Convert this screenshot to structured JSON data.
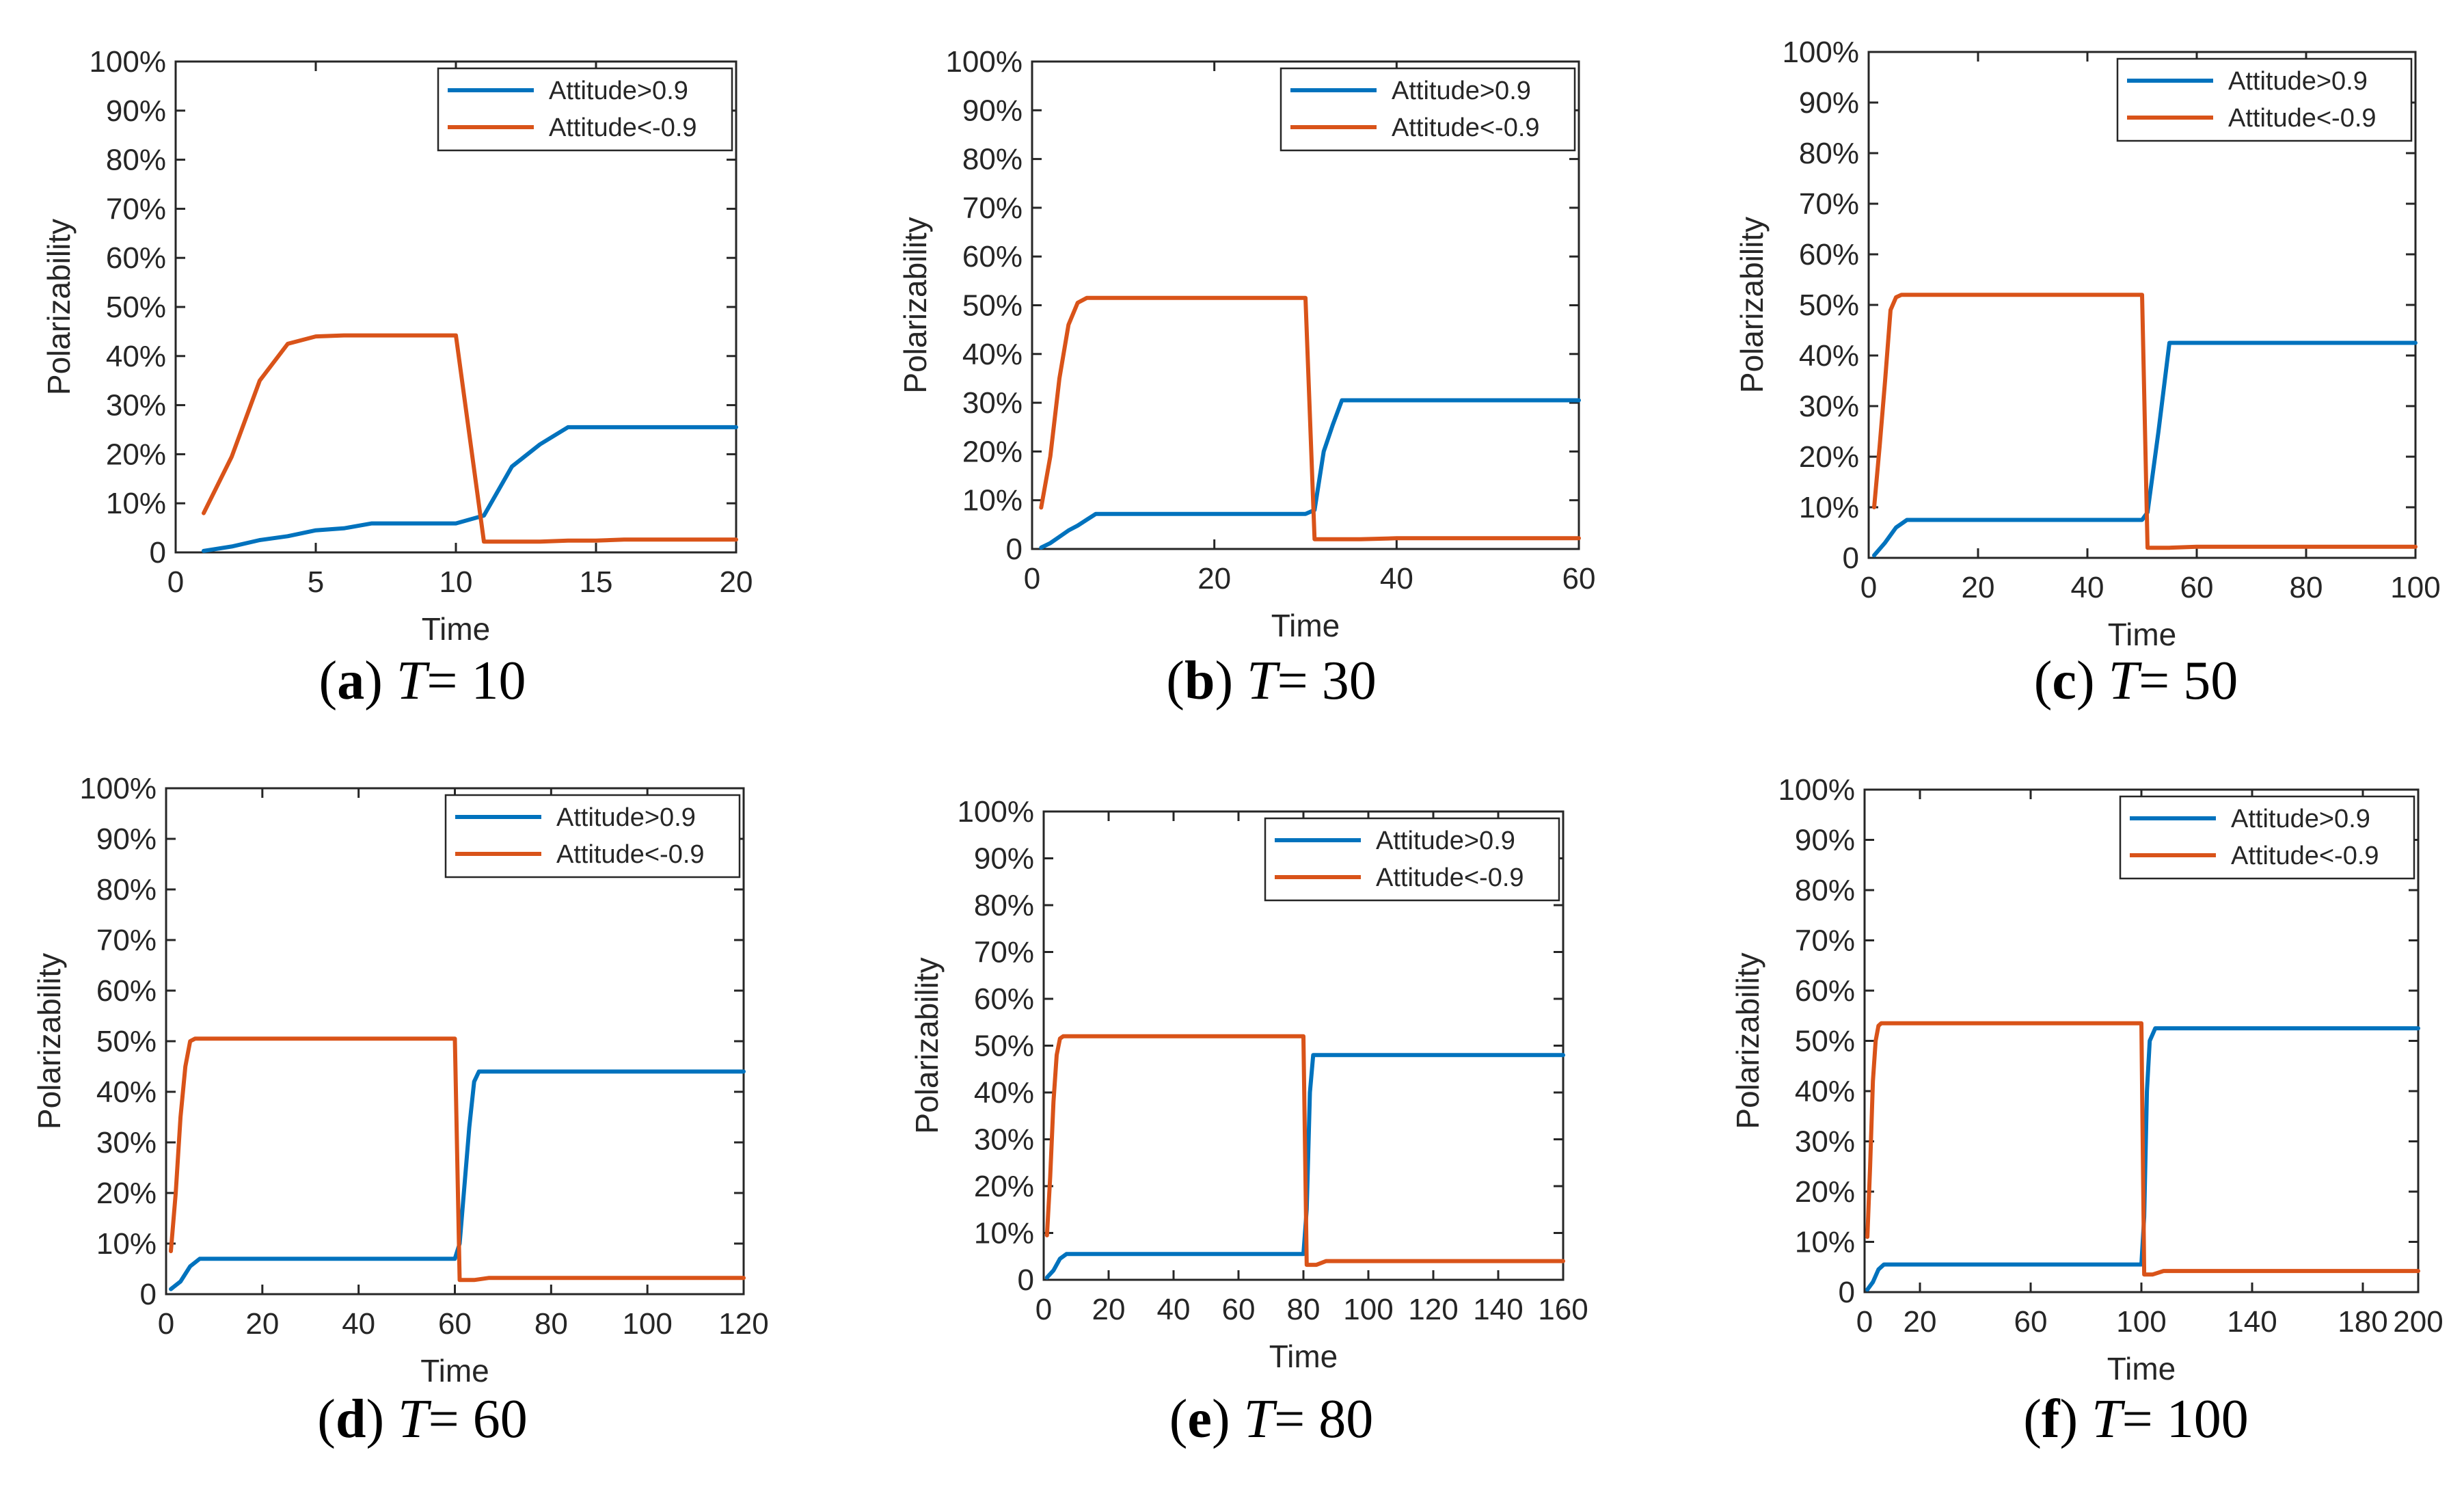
{
  "colors": {
    "series_pos": "#0072BD",
    "series_neg": "#D95319",
    "axis": "#262626"
  },
  "chart_data": [
    {
      "type": "line",
      "caption": {
        "label": "a",
        "var": "T",
        "rest": "= 10"
      },
      "xlabel": "Time",
      "ylabel": "Polarizability",
      "xlim": [
        0,
        20
      ],
      "ylim": [
        0,
        100
      ],
      "x_ticks": [
        0,
        5,
        10,
        15,
        20
      ],
      "x_tick_labels": [
        "0",
        "5",
        "10",
        "15",
        "20"
      ],
      "y_ticks": [
        0,
        10,
        20,
        30,
        40,
        50,
        60,
        70,
        80,
        90,
        100
      ],
      "y_tick_labels": [
        "0",
        "10%",
        "20%",
        "30%",
        "40%",
        "50%",
        "60%",
        "70%",
        "80%",
        "90%",
        "100%"
      ],
      "legend": "top-right",
      "series": [
        {
          "name": "Attitude>0.9",
          "x": [
            1,
            2,
            3,
            4,
            5,
            6,
            7,
            8,
            9,
            10,
            11,
            12,
            13,
            14,
            15,
            16,
            17,
            18,
            19,
            20
          ],
          "values": [
            0.3,
            1.2,
            2.5,
            3.3,
            4.5,
            4.9,
            5.9,
            5.9,
            5.9,
            5.9,
            7.5,
            17.5,
            22,
            25.5,
            25.5,
            25.5,
            25.5,
            25.5,
            25.5,
            25.5
          ]
        },
        {
          "name": "Attitude<-0.9",
          "x": [
            1,
            2,
            3,
            4,
            5,
            6,
            7,
            8,
            9,
            10,
            11,
            12,
            13,
            14,
            15,
            16,
            17,
            18,
            19,
            20
          ],
          "values": [
            8,
            19.5,
            35,
            42.5,
            44,
            44.2,
            44.2,
            44.2,
            44.2,
            44.2,
            2.2,
            2.2,
            2.2,
            2.4,
            2.4,
            2.6,
            2.6,
            2.6,
            2.6,
            2.6
          ]
        }
      ]
    },
    {
      "type": "line",
      "caption": {
        "label": "b",
        "var": "T",
        "rest": "= 30"
      },
      "xlabel": "Time",
      "ylabel": "Polarizability",
      "xlim": [
        0,
        60
      ],
      "ylim": [
        0,
        100
      ],
      "x_ticks": [
        0,
        20,
        40,
        60
      ],
      "x_tick_labels": [
        "0",
        "20",
        "40",
        "60"
      ],
      "y_ticks": [
        0,
        10,
        20,
        30,
        40,
        50,
        60,
        70,
        80,
        90,
        100
      ],
      "y_tick_labels": [
        "0",
        "10%",
        "20%",
        "30%",
        "40%",
        "50%",
        "60%",
        "70%",
        "80%",
        "90%",
        "100%"
      ],
      "legend": "top-right",
      "series": [
        {
          "name": "Attitude>0.9",
          "x": [
            1,
            2,
            3,
            4,
            5,
            6,
            7,
            10,
            15,
            20,
            25,
            30,
            31,
            32,
            33,
            34,
            40,
            50,
            60
          ],
          "values": [
            0.3,
            1.2,
            2.5,
            3.8,
            4.8,
            6,
            7.2,
            7.2,
            7.2,
            7.2,
            7.2,
            7.2,
            8,
            20,
            25.5,
            30.5,
            30.5,
            30.5,
            30.5
          ]
        },
        {
          "name": "Attitude<-0.9",
          "x": [
            1,
            2,
            3,
            4,
            5,
            6,
            7,
            10,
            20,
            30,
            31,
            32,
            36,
            40,
            50,
            60
          ],
          "values": [
            8.5,
            19,
            35,
            46,
            50.5,
            51.5,
            51.5,
            51.5,
            51.5,
            51.5,
            2,
            2,
            2,
            2.2,
            2.2,
            2.2
          ]
        }
      ]
    },
    {
      "type": "line",
      "caption": {
        "label": "c",
        "var": "T",
        "rest": "= 50"
      },
      "xlabel": "Time",
      "ylabel": "Polarizability",
      "xlim": [
        0,
        100
      ],
      "ylim": [
        0,
        100
      ],
      "x_ticks": [
        0,
        20,
        40,
        60,
        80,
        100
      ],
      "x_tick_labels": [
        "0",
        "20",
        "40",
        "60",
        "80",
        "100"
      ],
      "y_ticks": [
        0,
        10,
        20,
        30,
        40,
        50,
        60,
        70,
        80,
        90,
        100
      ],
      "y_tick_labels": [
        "0",
        "10%",
        "20%",
        "30%",
        "40%",
        "50%",
        "60%",
        "70%",
        "80%",
        "90%",
        "100%"
      ],
      "legend": "top-right",
      "series": [
        {
          "name": "Attitude>0.9",
          "x": [
            1,
            3,
            5,
            7,
            10,
            30,
            50,
            51,
            53,
            55,
            60,
            80,
            100
          ],
          "values": [
            0.5,
            3,
            6,
            7.5,
            7.5,
            7.5,
            7.5,
            9,
            25,
            42.5,
            42.5,
            42.5,
            42.5
          ]
        },
        {
          "name": "Attitude<-0.9",
          "x": [
            1,
            2,
            3,
            4,
            5,
            6,
            10,
            30,
            50,
            51,
            55,
            60,
            80,
            100
          ],
          "values": [
            10,
            22,
            35,
            49,
            51.5,
            52,
            52,
            52,
            52,
            2,
            2,
            2.2,
            2.2,
            2.2
          ]
        }
      ]
    },
    {
      "type": "line",
      "caption": {
        "label": "d",
        "var": "T",
        "rest": "= 60"
      },
      "xlabel": "Time",
      "ylabel": "Polarizability",
      "xlim": [
        0,
        120
      ],
      "ylim": [
        0,
        100
      ],
      "x_ticks": [
        0,
        20,
        40,
        60,
        80,
        100,
        120
      ],
      "x_tick_labels": [
        "0",
        "20",
        "40",
        "60",
        "80",
        "100",
        "120"
      ],
      "y_ticks": [
        0,
        10,
        20,
        30,
        40,
        50,
        60,
        70,
        80,
        90,
        100
      ],
      "y_tick_labels": [
        "0",
        "10%",
        "20%",
        "30%",
        "40%",
        "50%",
        "60%",
        "70%",
        "80%",
        "90%",
        "100%"
      ],
      "legend": "top-right",
      "series": [
        {
          "name": "Attitude>0.9",
          "x": [
            1,
            3,
            5,
            7,
            10,
            30,
            60,
            61,
            63,
            64,
            65,
            80,
            100,
            120
          ],
          "values": [
            1,
            2.5,
            5.5,
            7,
            7,
            7,
            7,
            10,
            33,
            42,
            44,
            44,
            44,
            44
          ]
        },
        {
          "name": "Attitude<-0.9",
          "x": [
            1,
            2,
            3,
            4,
            5,
            6,
            10,
            30,
            60,
            61,
            64,
            67,
            80,
            100,
            120
          ],
          "values": [
            8.5,
            20,
            35,
            45,
            50,
            50.5,
            50.5,
            50.5,
            50.5,
            2.8,
            2.8,
            3.2,
            3.2,
            3.2,
            3.2
          ]
        }
      ]
    },
    {
      "type": "line",
      "caption": {
        "label": "e",
        "var": "T",
        "rest": "= 80"
      },
      "xlabel": "Time",
      "ylabel": "Polarizability",
      "xlim": [
        0,
        160
      ],
      "ylim": [
        0,
        100
      ],
      "x_ticks": [
        0,
        20,
        40,
        60,
        80,
        100,
        120,
        140,
        160
      ],
      "x_tick_labels": [
        "0",
        "20",
        "40",
        "60",
        "80",
        "100",
        "120",
        "140",
        "160"
      ],
      "y_ticks": [
        0,
        10,
        20,
        30,
        40,
        50,
        60,
        70,
        80,
        90,
        100
      ],
      "y_tick_labels": [
        "0",
        "10%",
        "20%",
        "30%",
        "40%",
        "50%",
        "60%",
        "70%",
        "80%",
        "90%",
        "100%"
      ],
      "legend": "top-right",
      "series": [
        {
          "name": "Attitude>0.9",
          "x": [
            1,
            3,
            5,
            7,
            10,
            40,
            80,
            81,
            82,
            83,
            90,
            120,
            160
          ],
          "values": [
            0.5,
            2,
            4.5,
            5.5,
            5.5,
            5.5,
            5.5,
            15,
            40,
            48,
            48,
            48,
            48
          ]
        },
        {
          "name": "Attitude<-0.9",
          "x": [
            1,
            2,
            3,
            4,
            5,
            6,
            10,
            40,
            80,
            81,
            84,
            87,
            120,
            160
          ],
          "values": [
            9.5,
            22,
            38,
            48,
            51.5,
            52,
            52,
            52,
            52,
            3.2,
            3.2,
            4,
            4,
            4
          ]
        }
      ]
    },
    {
      "type": "line",
      "caption": {
        "label": "f",
        "var": "T",
        "rest": "= 100"
      },
      "xlabel": "Time",
      "ylabel": "Polarizability",
      "xlim": [
        0,
        200
      ],
      "ylim": [
        0,
        100
      ],
      "x_ticks": [
        0,
        20,
        60,
        100,
        140,
        180,
        200
      ],
      "x_tick_labels": [
        "0",
        "20",
        "60",
        "100",
        "140",
        "180",
        "200"
      ],
      "y_ticks": [
        0,
        10,
        20,
        30,
        40,
        50,
        60,
        70,
        80,
        90,
        100
      ],
      "y_tick_labels": [
        "0",
        "10%",
        "20%",
        "30%",
        "40%",
        "50%",
        "60%",
        "70%",
        "80%",
        "90%",
        "100%"
      ],
      "legend": "top-right",
      "series": [
        {
          "name": "Attitude>0.9",
          "x": [
            1,
            3,
            5,
            7,
            10,
            50,
            100,
            101,
            102,
            103,
            105,
            140,
            200
          ],
          "values": [
            0.5,
            2,
            4.5,
            5.5,
            5.5,
            5.5,
            5.5,
            15,
            40,
            50,
            52.5,
            52.5,
            52.5
          ]
        },
        {
          "name": "Attitude<-0.9",
          "x": [
            1,
            2,
            3,
            4,
            5,
            6,
            10,
            50,
            100,
            101,
            104,
            108,
            140,
            200
          ],
          "values": [
            11,
            25,
            42,
            50,
            53,
            53.5,
            53.5,
            53.5,
            53.5,
            3.5,
            3.5,
            4.2,
            4.2,
            4.2
          ]
        }
      ]
    }
  ]
}
